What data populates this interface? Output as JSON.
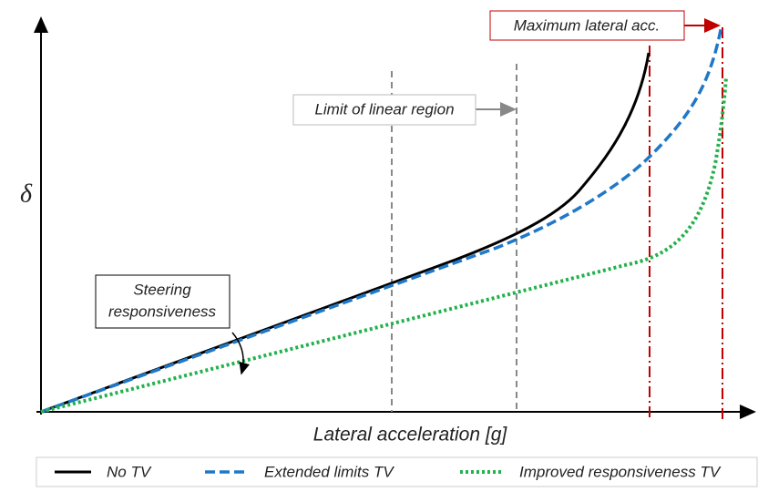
{
  "axis": {
    "y_label": "δ",
    "x_label": "Lateral acceleration [g]"
  },
  "annotations": {
    "linear_limit": "Limit of linear region",
    "max_lat": "Maximum lateral acc.",
    "steering": [
      "Steering",
      "responsiveness"
    ]
  },
  "legend": [
    "No TV",
    "Extended limits TV",
    "Improved responsiveness TV"
  ]
}
